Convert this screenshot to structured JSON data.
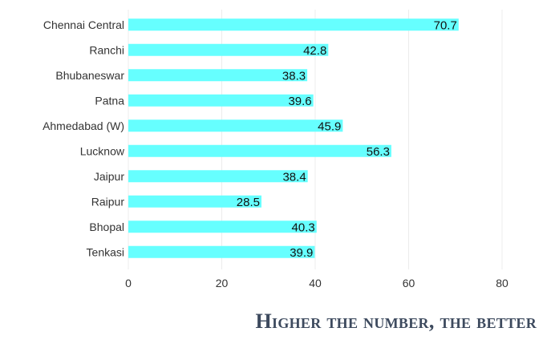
{
  "chart_data": {
    "type": "bar",
    "orientation": "horizontal",
    "categories": [
      "Chennai Central",
      "Ranchi",
      "Bhubaneswar",
      "Patna",
      "Ahmedabad (W)",
      "Lucknow",
      "Jaipur",
      "Raipur",
      "Bhopal",
      "Tenkasi"
    ],
    "values": [
      70.7,
      42.8,
      38.3,
      39.6,
      45.9,
      56.3,
      38.4,
      28.5,
      40.3,
      39.9
    ],
    "value_labels": [
      "70.7",
      "42.8",
      "38.3",
      "39.6",
      "45.9",
      "56.3",
      "38.4",
      "28.5",
      "40.3",
      "39.9"
    ],
    "xticks": [
      "0",
      "20",
      "40",
      "60",
      "80"
    ],
    "xlim": [
      0,
      80
    ],
    "grid": "vertical",
    "bar_color": "#66ffff",
    "title": "",
    "xlabel": "",
    "ylabel": ""
  },
  "footer": {
    "note": "Higher the number, the better"
  }
}
